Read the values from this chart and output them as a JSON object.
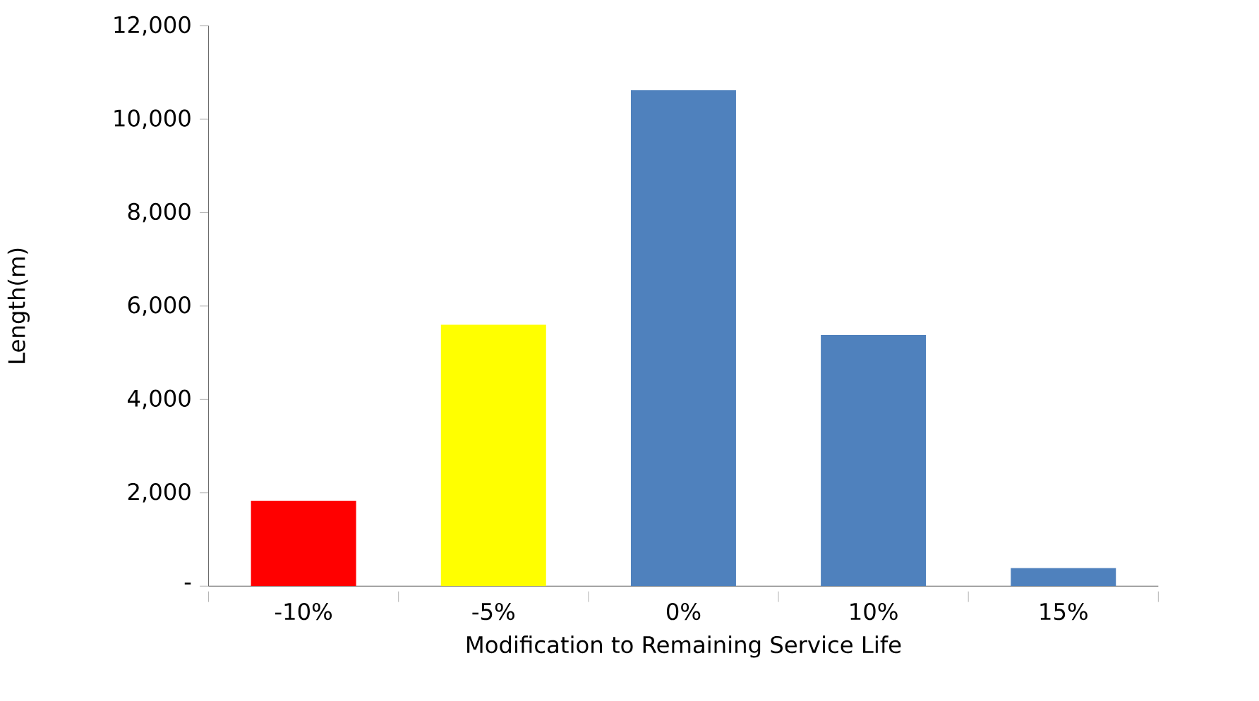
{
  "chart_data": {
    "type": "bar",
    "xlabel": "Modification to Remaining Service Life",
    "ylabel": "Length(m)",
    "categories": [
      "-10%",
      "-5%",
      "0%",
      "10%",
      "15%"
    ],
    "values": [
      1830,
      5600,
      10620,
      5380,
      390
    ],
    "colors": [
      "#ff0000",
      "#ffff00",
      "#4f81bd",
      "#4f81bd",
      "#4f81bd"
    ],
    "ylim": [
      0,
      12000
    ],
    "yticks": [
      {
        "value": 0,
        "label": "-"
      },
      {
        "value": 2000,
        "label": "2,000"
      },
      {
        "value": 4000,
        "label": "4,000"
      },
      {
        "value": 6000,
        "label": "6,000"
      },
      {
        "value": 8000,
        "label": "8,000"
      },
      {
        "value": 10000,
        "label": "10,000"
      },
      {
        "value": 12000,
        "label": "12,000"
      }
    ],
    "grid": false
  }
}
